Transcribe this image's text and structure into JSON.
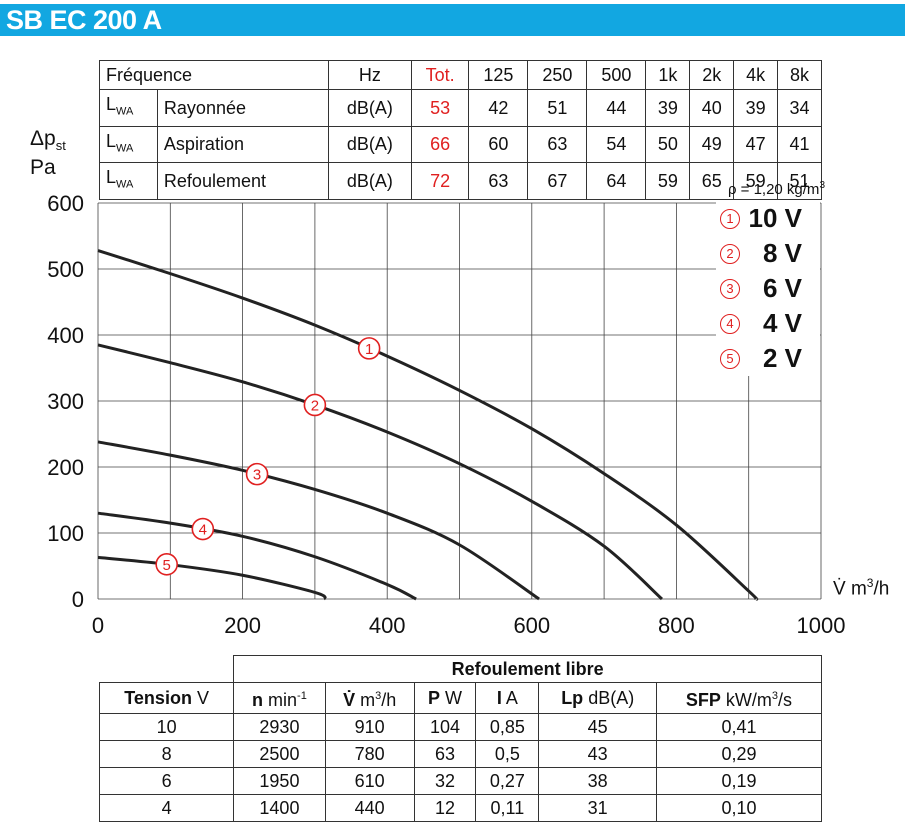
{
  "title": "SB EC 200 A",
  "noise_table": {
    "header": [
      "Fréquence",
      "Hz",
      "Tot.",
      "125",
      "250",
      "500",
      "1k",
      "2k",
      "4k",
      "8k"
    ],
    "lwa_symbol": "L",
    "lwa_sub": "WA",
    "rows": [
      {
        "name": "Rayonnée",
        "unit": "dB(A)",
        "tot": "53",
        "values": [
          "42",
          "51",
          "44",
          "39",
          "40",
          "39",
          "34"
        ]
      },
      {
        "name": "Aspiration",
        "unit": "dB(A)",
        "tot": "66",
        "values": [
          "60",
          "63",
          "54",
          "50",
          "49",
          "47",
          "41"
        ]
      },
      {
        "name": "Refoulement",
        "unit": "dB(A)",
        "tot": "72",
        "values": [
          "63",
          "67",
          "64",
          "59",
          "65",
          "59",
          "51"
        ]
      }
    ]
  },
  "chart_data": {
    "type": "line",
    "ylabel_main": "Δp",
    "ylabel_sub": "st",
    "ylabel_unit": "Pa",
    "xlabel": "V̇ m",
    "xlabel_sup": "3",
    "xlabel_tail": "/h",
    "density_note": "ρ = 1,20 kg/m",
    "density_sup": "3",
    "xlim": [
      0,
      1000
    ],
    "ylim": [
      0,
      600
    ],
    "x_ticks": [
      0,
      200,
      400,
      600,
      800,
      1000
    ],
    "y_ticks": [
      0,
      100,
      200,
      300,
      400,
      500,
      600
    ],
    "x_grid_step": 100,
    "y_grid_step": 100,
    "grid": true,
    "legend_position": "top-right",
    "series": [
      {
        "marker": "1",
        "name": "10 V",
        "x": [
          0,
          100,
          200,
          300,
          400,
          500,
          600,
          700,
          800,
          900,
          910
        ],
        "y": [
          528,
          493,
          456,
          415,
          368,
          316,
          258,
          190,
          112,
          12,
          0
        ],
        "label_at": 375
      },
      {
        "marker": "2",
        "name": "8 V",
        "x": [
          0,
          100,
          200,
          300,
          400,
          500,
          600,
          700,
          780
        ],
        "y": [
          385,
          358,
          329,
          294,
          253,
          205,
          148,
          80,
          0
        ],
        "label_at": 300
      },
      {
        "marker": "3",
        "name": "6 V",
        "x": [
          0,
          100,
          200,
          300,
          400,
          500,
          610
        ],
        "y": [
          238,
          218,
          195,
          166,
          130,
          82,
          0
        ],
        "label_at": 220
      },
      {
        "marker": "4",
        "name": "4 V",
        "x": [
          0,
          100,
          200,
          300,
          400,
          440
        ],
        "y": [
          130,
          115,
          95,
          64,
          22,
          0
        ],
        "label_at": 145
      },
      {
        "marker": "5",
        "name": "2 V",
        "x": [
          0,
          100,
          200,
          300,
          315
        ],
        "y": [
          63,
          52,
          36,
          10,
          0
        ],
        "label_at": 95
      }
    ]
  },
  "perf_table": {
    "group_header": "Refoulement libre",
    "headers": [
      {
        "bold": "Tension",
        "unit": " V"
      },
      {
        "bold": "n",
        "unit": " min",
        "sup": "-1"
      },
      {
        "bold": "V̇",
        "unit": " m",
        "sup": "3",
        "tail": "/h"
      },
      {
        "bold": "P",
        "unit": " W"
      },
      {
        "bold": "I",
        "unit": " A"
      },
      {
        "bold": "Lp",
        "unit": " dB(A)"
      },
      {
        "bold": "SFP",
        "unit": " kW/m",
        "sup": "3",
        "tail": "/s"
      }
    ],
    "rows": [
      [
        "10",
        "2930",
        "910",
        "104",
        "0,85",
        "45",
        "0,41"
      ],
      [
        "8",
        "2500",
        "780",
        "63",
        "0,5",
        "43",
        "0,29"
      ],
      [
        "6",
        "1950",
        "610",
        "32",
        "0,27",
        "38",
        "0,19"
      ],
      [
        "4",
        "1400",
        "440",
        "12",
        "0,11",
        "31",
        "0,10"
      ]
    ]
  }
}
